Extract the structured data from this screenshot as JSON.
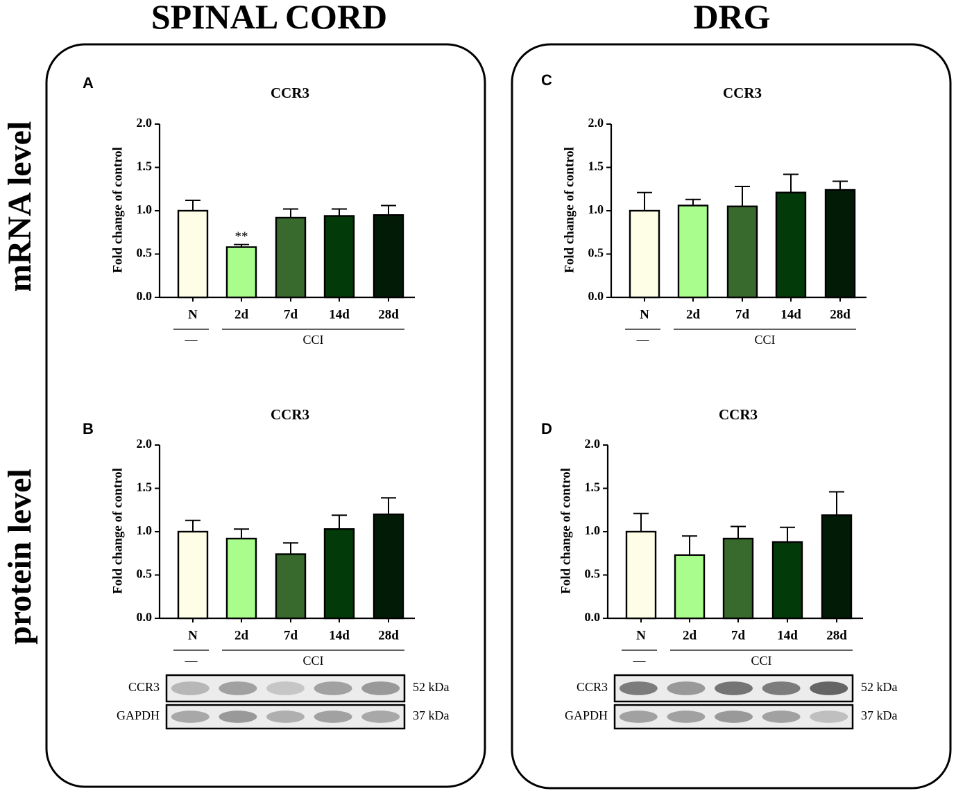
{
  "columns": {
    "spinal": "SPINAL CORD",
    "drg": "DRG"
  },
  "rows": {
    "mrna": "mRNA level",
    "protein": "protein level"
  },
  "colors": {
    "N": "#fefde6",
    "2d": "#a9fd8d",
    "7d": "#376a2c",
    "14d": "#033a0a",
    "28d": "#021b07",
    "frame": "#000000",
    "blot_bg": "#ececec"
  },
  "chart_data": [
    {
      "panel": "A",
      "type": "bar",
      "title": "CCR3",
      "ylabel": "Fold change of control",
      "ylim": [
        0,
        2.0
      ],
      "yticks": [
        "0.0",
        "0.5",
        "1.0",
        "1.5",
        "2.0"
      ],
      "categories": [
        "N",
        "2d",
        "7d",
        "14d",
        "28d"
      ],
      "values": [
        1.0,
        0.58,
        0.92,
        0.94,
        0.95
      ],
      "errors": [
        0.12,
        0.03,
        0.1,
        0.08,
        0.11
      ],
      "annotations": [
        {
          "category": "2d",
          "text": "**"
        }
      ],
      "groups": [
        {
          "label": "—",
          "categories": [
            "N"
          ]
        },
        {
          "label": "CCI",
          "categories": [
            "2d",
            "7d",
            "14d",
            "28d"
          ]
        }
      ]
    },
    {
      "panel": "B",
      "type": "bar",
      "title": "CCR3",
      "ylabel": "Fold change of control",
      "ylim": [
        0,
        2.0
      ],
      "yticks": [
        "0.0",
        "0.5",
        "1.0",
        "1.5",
        "2.0"
      ],
      "categories": [
        "N",
        "2d",
        "7d",
        "14d",
        "28d"
      ],
      "values": [
        1.0,
        0.92,
        0.74,
        1.03,
        1.2
      ],
      "errors": [
        0.13,
        0.11,
        0.13,
        0.16,
        0.19
      ],
      "annotations": [],
      "groups": [
        {
          "label": "—",
          "categories": [
            "N"
          ]
        },
        {
          "label": "CCI",
          "categories": [
            "2d",
            "7d",
            "14d",
            "28d"
          ]
        }
      ],
      "blots": [
        {
          "protein": "CCR3",
          "size": "52 kDa",
          "intensities": [
            0.35,
            0.5,
            0.25,
            0.5,
            0.55
          ]
        },
        {
          "protein": "GAPDH",
          "size": "37 kDa",
          "intensities": [
            0.45,
            0.55,
            0.4,
            0.5,
            0.45
          ]
        }
      ]
    },
    {
      "panel": "C",
      "type": "bar",
      "title": "CCR3",
      "ylabel": "Fold change of control",
      "ylim": [
        0,
        2.0
      ],
      "yticks": [
        "0.0",
        "0.5",
        "1.0",
        "1.5",
        "2.0"
      ],
      "categories": [
        "N",
        "2d",
        "7d",
        "14d",
        "28d"
      ],
      "values": [
        1.0,
        1.06,
        1.05,
        1.21,
        1.24
      ],
      "errors": [
        0.21,
        0.07,
        0.23,
        0.21,
        0.1
      ],
      "annotations": [],
      "groups": [
        {
          "label": "—",
          "categories": [
            "N"
          ]
        },
        {
          "label": "CCI",
          "categories": [
            "2d",
            "7d",
            "14d",
            "28d"
          ]
        }
      ]
    },
    {
      "panel": "D",
      "type": "bar",
      "title": "CCR3",
      "ylabel": "Fold change of control",
      "ylim": [
        0,
        2.0
      ],
      "yticks": [
        "0.0",
        "0.5",
        "1.0",
        "1.5",
        "2.0"
      ],
      "categories": [
        "N",
        "2d",
        "7d",
        "14d",
        "28d"
      ],
      "values": [
        1.0,
        0.73,
        0.92,
        0.88,
        1.19
      ],
      "errors": [
        0.21,
        0.22,
        0.14,
        0.17,
        0.27
      ],
      "annotations": [],
      "groups": [
        {
          "label": "—",
          "categories": [
            "N"
          ]
        },
        {
          "label": "CCI",
          "categories": [
            "2d",
            "7d",
            "14d",
            "28d"
          ]
        }
      ],
      "blots": [
        {
          "protein": "CCR3",
          "size": "52 kDa",
          "intensities": [
            0.75,
            0.55,
            0.8,
            0.75,
            0.9
          ]
        },
        {
          "protein": "GAPDH",
          "size": "37 kDa",
          "intensities": [
            0.5,
            0.5,
            0.55,
            0.5,
            0.3
          ]
        }
      ]
    }
  ]
}
